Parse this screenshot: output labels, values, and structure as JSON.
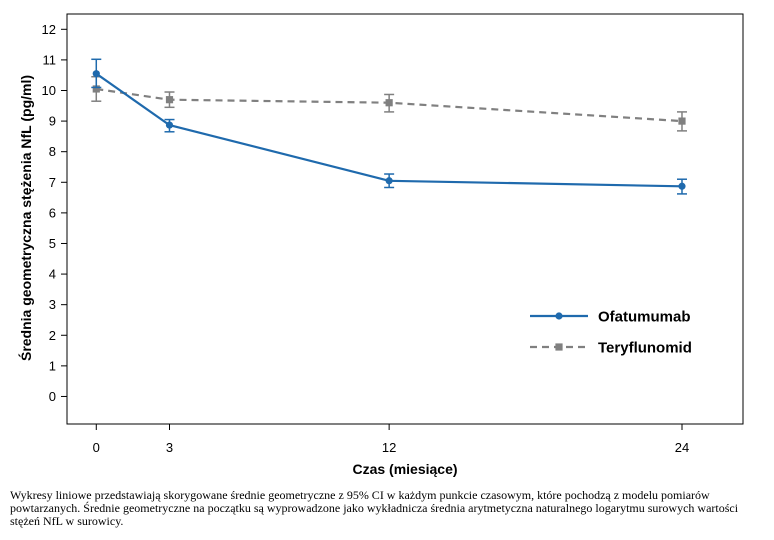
{
  "chart_data": {
    "type": "line",
    "xlabel": "Czas (miesiące)",
    "ylabel": "Średnia geometryczna stężenia NfL (pg/ml)",
    "x_ticks": [
      0,
      3,
      12,
      24
    ],
    "y_ticks": [
      0,
      1,
      2,
      3,
      4,
      5,
      6,
      7,
      8,
      9,
      10,
      11,
      12
    ],
    "xlim": [
      -1.2,
      26.5
    ],
    "ylim": [
      -0.9,
      12.5
    ],
    "grid": false,
    "legend_position": "bottom-right",
    "error_bars": "95% CI",
    "series": [
      {
        "name": "Ofatumumab",
        "color": "#1f6aad",
        "line_style": "solid",
        "marker": "circle",
        "x": [
          0,
          3,
          12,
          24
        ],
        "y": [
          10.55,
          8.87,
          7.05,
          6.87
        ],
        "ci_low": [
          10.1,
          8.65,
          6.83,
          6.62
        ],
        "ci_high": [
          11.02,
          9.05,
          7.27,
          7.1
        ]
      },
      {
        "name": "Teryflunomid",
        "color": "#808080",
        "line_style": "dashed",
        "marker": "square",
        "x": [
          0,
          3,
          12,
          24
        ],
        "y": [
          10.05,
          9.7,
          9.6,
          9.0
        ],
        "ci_low": [
          9.65,
          9.45,
          9.3,
          8.68
        ],
        "ci_high": [
          10.45,
          9.95,
          9.87,
          9.3
        ]
      }
    ]
  },
  "caption": "Wykresy liniowe przedstawiają skorygowane średnie geometryczne z 95% CI w każdym punkcie czasowym, które pochodzą z modelu pomiarów powtarzanych. Średnie geometryczne na początku są wyprowadzone jako wykładnicza średnia arytmetyczna naturalnego logarytmu surowych wartości stężeń NfL w surowicy."
}
